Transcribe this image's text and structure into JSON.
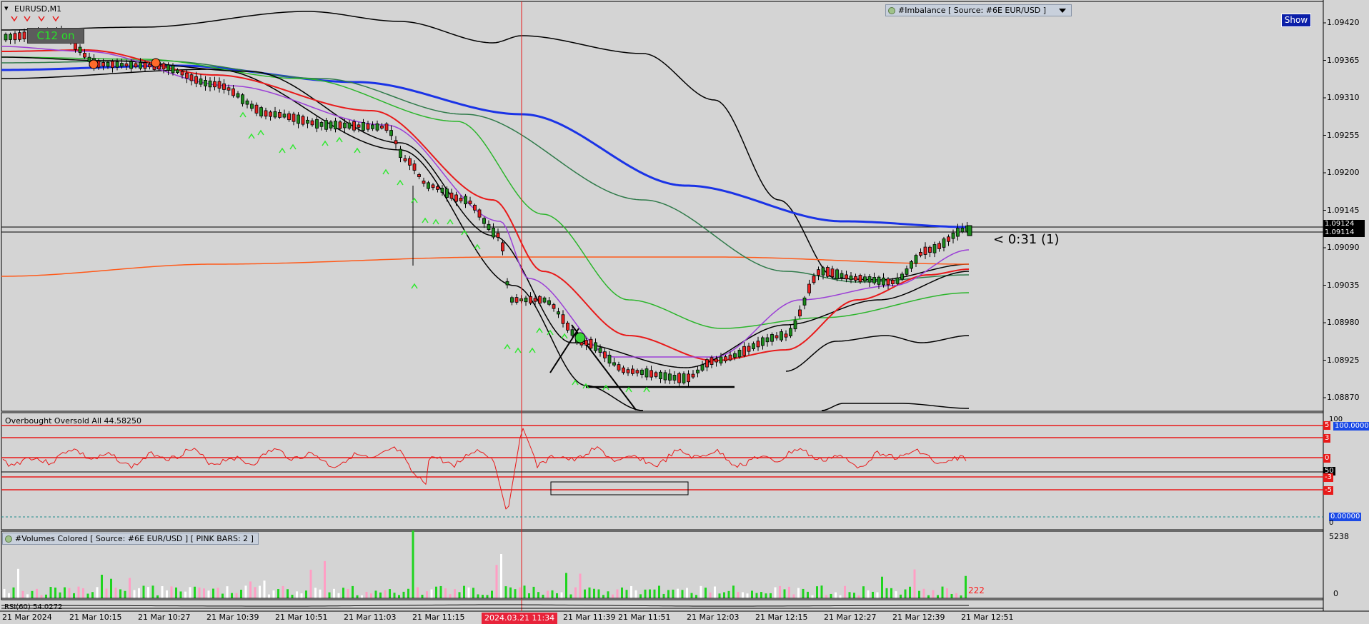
{
  "window": {
    "symbol_title": "EURUSD,M1",
    "c12_badge": "C12 on",
    "show_button": "Show",
    "timer_text": "< 0:31 (1)"
  },
  "indicators": {
    "imbalance_chip": "#Imbalance [ Source: #6E EUR/USD ]",
    "oscillator_title": "Overbought  Oversold  All 44.58250",
    "volumes_chip": "#Volumes Colored [ Source: #6E EUR/USD ]  [ PINK BARS: 2 ]",
    "rsi_label": "RSI(60) 54.0272"
  },
  "price_axis": {
    "labels": [
      "1.09420",
      "1.09365",
      "1.09310",
      "1.09255",
      "1.09200",
      "1.09145",
      "1.09090",
      "1.09035",
      "1.08980",
      "1.08925",
      "1.08870"
    ],
    "current_bid": "1.09124",
    "current_ask": "1.09114"
  },
  "oscillator_axis": {
    "top": "100",
    "bottom": "0",
    "level_5": "5",
    "level_3": "3",
    "level_0": "0",
    "level_50": "50",
    "level_m3": "-3",
    "level_m5": "-5",
    "upper_value": "100.00000",
    "lower_value": "0.00000"
  },
  "volume_axis": {
    "max": "5238",
    "zero": "0",
    "last_count": "222"
  },
  "time_axis": {
    "labels": [
      "21 Mar 2024",
      "21 Mar 10:15",
      "21 Mar 10:27",
      "21 Mar 10:39",
      "21 Mar 10:51",
      "21 Mar 11:03",
      "21 Mar 11:15",
      "21 Mar 11:39",
      "21 Mar 11:51",
      "21 Mar 12:03",
      "21 Mar 12:15",
      "21 Mar 12:27",
      "21 Mar 12:39",
      "21 Mar 12:51"
    ],
    "cursor_time": "2024.03.21 11:34"
  },
  "colors": {
    "background": "#d4d4d4",
    "bull_candle": "#1a8a1a",
    "bear_candle": "#e82020",
    "ma_blue": "#1a33e6",
    "ma_red": "#e81a1a",
    "ma_orange": "#ff5a1a",
    "ma_purple": "#9b3fd6",
    "ma_green": "#2bb52b",
    "ma_darkgreen": "#2f7a4a",
    "envelope": "#000000",
    "fractal_arrow": "#2ee82e",
    "vol_up": "#1fd41f",
    "vol_down": "#ff9ec4",
    "oscillator_line": "#e81a1a",
    "cursor_line": "#e81a1a"
  }
}
